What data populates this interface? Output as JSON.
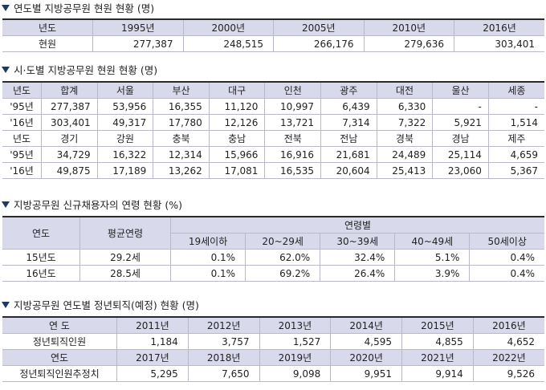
{
  "s1": {
    "title": "연도별 지방공무원 현원 현황 (명)",
    "header": [
      "년도",
      "1995년",
      "2000년",
      "2005년",
      "2010년",
      "2016년"
    ],
    "row": [
      "현원",
      "277,387",
      "248,515",
      "266,176",
      "279,636",
      "303,401"
    ]
  },
  "s2": {
    "title": "시·도별 지방공무원 현원 현황 (명)",
    "header1": [
      "년도",
      "합계",
      "서울",
      "부산",
      "대구",
      "인천",
      "광주",
      "대전",
      "울산",
      "세종"
    ],
    "rows1": [
      [
        "'95년",
        "277,387",
        "53,956",
        "16,355",
        "11,120",
        "10,997",
        "6,439",
        "6,330",
        "-",
        "-"
      ],
      [
        "'16년",
        "303,401",
        "49,317",
        "17,780",
        "12,126",
        "13,721",
        "7,314",
        "7,322",
        "5,921",
        "1,514"
      ]
    ],
    "header2": [
      "년도",
      "경기",
      "강원",
      "충북",
      "충남",
      "전북",
      "전남",
      "경북",
      "경남",
      "제주"
    ],
    "rows2": [
      [
        "'95년",
        "34,729",
        "16,322",
        "12,314",
        "15,966",
        "16,916",
        "21,681",
        "24,489",
        "25,114",
        "4,659"
      ],
      [
        "'16년",
        "49,875",
        "17,189",
        "13,262",
        "17,081",
        "16,535",
        "20,604",
        "25,413",
        "23,060",
        "5,367"
      ]
    ]
  },
  "s3": {
    "title": "지방공무원 신규채용자의 연령 현황 (%)",
    "col_year": "연도",
    "col_avg": "평균연령",
    "col_group": "연령별",
    "age_groups": [
      "19세이하",
      "20~29세",
      "30~39세",
      "40~49세",
      "50세이상"
    ],
    "rows": [
      [
        "15년도",
        "29.2세",
        "0.1%",
        "62.0%",
        "32.4%",
        "5.1%",
        "0.4%"
      ],
      [
        "16년도",
        "28.5세",
        "0.1%",
        "69.2%",
        "26.4%",
        "3.9%",
        "0.4%"
      ]
    ]
  },
  "s4": {
    "title": "지방공무원 연도별 정년퇴직(예정) 현황 (명)",
    "header1": [
      "연 도",
      "2011년",
      "2012년",
      "2013년",
      "2014년",
      "2015년",
      "2016년"
    ],
    "row1": [
      "정년퇴직인원",
      "1,184",
      "3,757",
      "1,527",
      "4,595",
      "4,855",
      "4,652"
    ],
    "header2": [
      "연도",
      "2017년",
      "2018년",
      "2019년",
      "2020년",
      "2021년",
      "2022년"
    ],
    "row2": [
      "정년퇴직인원추정치",
      "5,295",
      "7,650",
      "9,098",
      "9,951",
      "9,914",
      "9,526"
    ]
  }
}
